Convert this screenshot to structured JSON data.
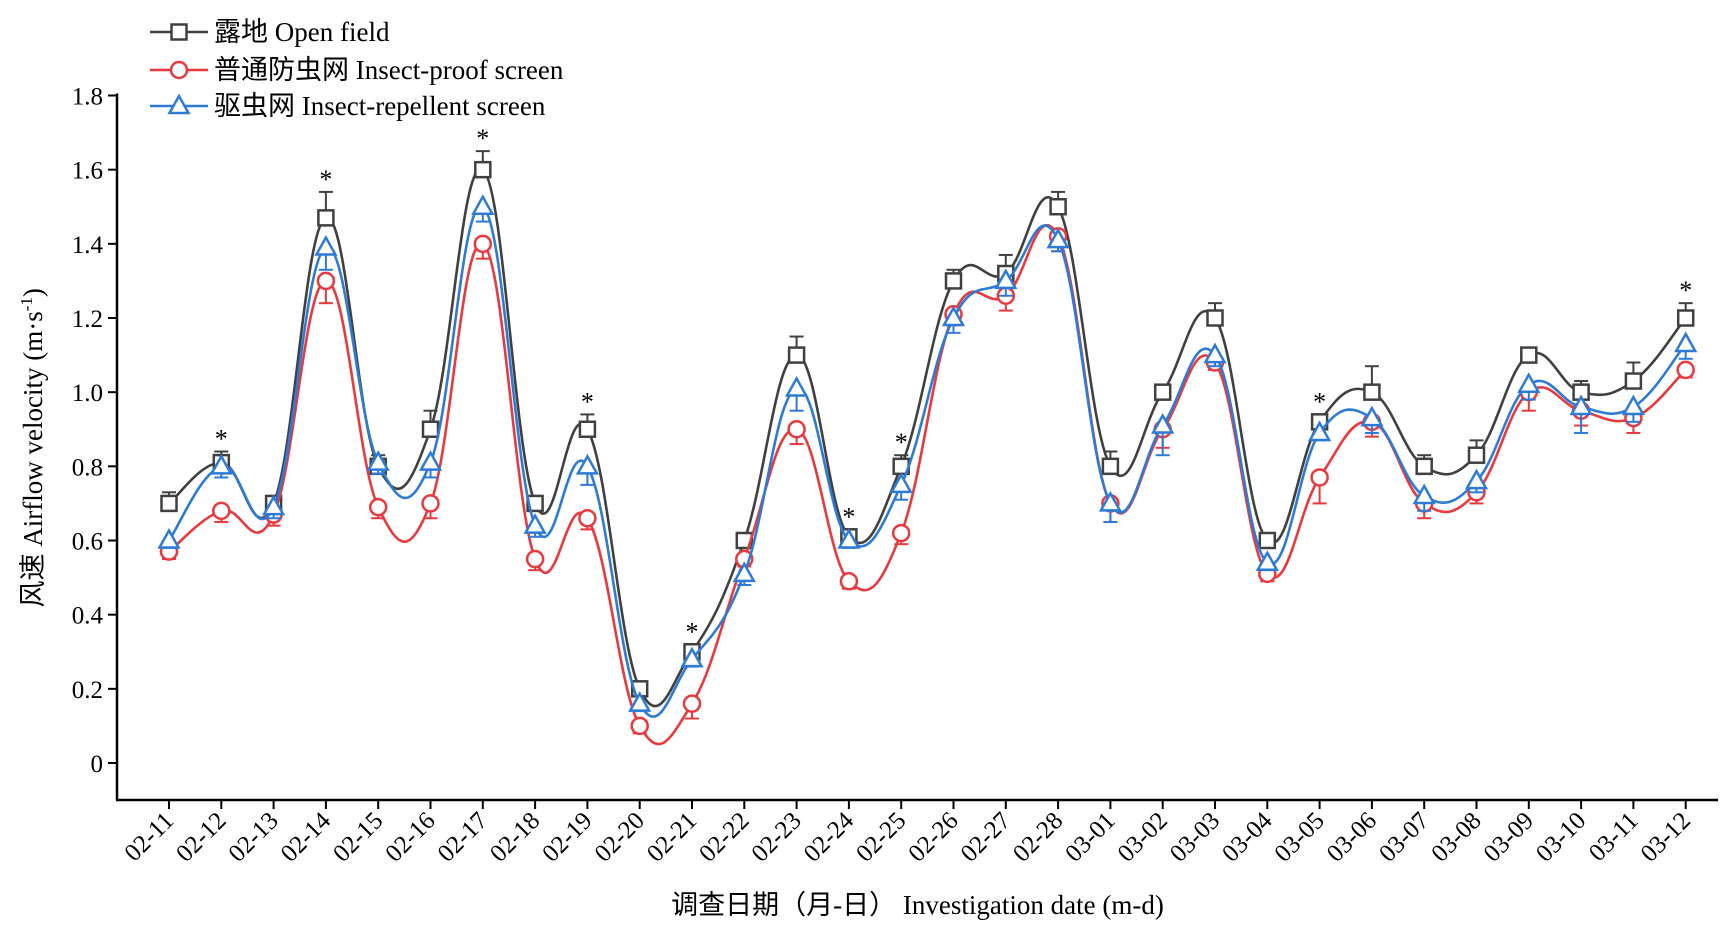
{
  "chart_data": {
    "type": "line",
    "xlabel": "调查日期（月-日） Investigation date (m-d)",
    "ylabel_cn": "风速 Airflow velocity (m·s",
    "ylabel_sup": "-1",
    "ylabel_close": ")",
    "ylim": [
      -0.1,
      1.8
    ],
    "yticks": [
      0,
      0.2,
      0.4,
      0.6,
      0.8,
      1.0,
      1.2,
      1.4,
      1.6,
      1.8
    ],
    "ytick_labels": [
      "0",
      "0.2",
      "0.4",
      "0.6",
      "0.8",
      "1.0",
      "1.2",
      "1.4",
      "1.6",
      "1.8"
    ],
    "categories": [
      "02-11",
      "02-12",
      "02-13",
      "02-14",
      "02-15",
      "02-16",
      "02-17",
      "02-18",
      "02-19",
      "02-20",
      "02-21",
      "02-22",
      "02-23",
      "02-24",
      "02-25",
      "02-26",
      "02-27",
      "02-28",
      "03-01",
      "03-02",
      "03-03",
      "03-04",
      "03-05",
      "03-06",
      "03-07",
      "03-08",
      "03-09",
      "03-10",
      "03-11",
      "03-12"
    ],
    "significance_marker": "*",
    "significant_categories": [
      "02-12",
      "02-14",
      "02-17",
      "02-19",
      "02-21",
      "02-24",
      "02-25",
      "03-05",
      "03-12"
    ],
    "legend_position": "top-left",
    "series": [
      {
        "name": "露地 Open field",
        "color": "#404040",
        "marker": "square",
        "values": [
          0.7,
          0.81,
          0.7,
          1.47,
          0.8,
          0.9,
          1.6,
          0.7,
          0.9,
          0.2,
          0.3,
          0.6,
          1.1,
          0.61,
          0.8,
          1.3,
          1.32,
          1.5,
          0.8,
          1.0,
          1.2,
          0.6,
          0.92,
          1.0,
          0.8,
          0.83,
          1.1,
          1.0,
          1.03,
          1.2
        ],
        "errors": [
          0.03,
          0.03,
          0.02,
          0.07,
          0.03,
          0.05,
          0.05,
          0.02,
          0.04,
          0.01,
          0.02,
          0.02,
          0.05,
          0.02,
          0.03,
          0.03,
          0.05,
          0.04,
          0.04,
          0.02,
          0.04,
          0.01,
          0.02,
          0.07,
          0.03,
          0.04,
          0.02,
          0.03,
          0.05,
          0.04
        ]
      },
      {
        "name": "普通防虫网 Insect-proof screen",
        "color": "#e8393e",
        "marker": "circle",
        "values": [
          0.57,
          0.68,
          0.67,
          1.3,
          0.69,
          0.7,
          1.4,
          0.55,
          0.66,
          0.1,
          0.16,
          0.55,
          0.9,
          0.49,
          0.62,
          1.21,
          1.26,
          1.42,
          0.7,
          0.9,
          1.08,
          0.51,
          0.77,
          0.92,
          0.7,
          0.73,
          1.0,
          0.95,
          0.93,
          1.06
        ],
        "errors": [
          0.02,
          0.03,
          0.03,
          0.06,
          0.03,
          0.04,
          0.04,
          0.03,
          0.03,
          0.02,
          0.04,
          0.02,
          0.04,
          0.02,
          0.03,
          0.03,
          0.04,
          0.04,
          0.05,
          0.05,
          0.02,
          0.02,
          0.07,
          0.04,
          0.04,
          0.03,
          0.05,
          0.04,
          0.04,
          0.02
        ]
      },
      {
        "name": "驱虫网 Insect-repellent screen",
        "color": "#2d7bd6",
        "marker": "triangle",
        "values": [
          0.6,
          0.8,
          0.69,
          1.39,
          0.81,
          0.81,
          1.5,
          0.64,
          0.8,
          0.16,
          0.28,
          0.51,
          1.01,
          0.6,
          0.75,
          1.2,
          1.3,
          1.41,
          0.7,
          0.91,
          1.1,
          0.54,
          0.89,
          0.93,
          0.72,
          0.76,
          1.02,
          0.96,
          0.96,
          1.13
        ],
        "errors": [
          0.02,
          0.03,
          0.03,
          0.06,
          0.03,
          0.04,
          0.04,
          0.03,
          0.05,
          0.02,
          0.02,
          0.03,
          0.06,
          0.02,
          0.04,
          0.04,
          0.04,
          0.03,
          0.05,
          0.08,
          0.03,
          0.02,
          0.02,
          0.04,
          0.04,
          0.03,
          0.04,
          0.07,
          0.04,
          0.04
        ]
      }
    ]
  }
}
